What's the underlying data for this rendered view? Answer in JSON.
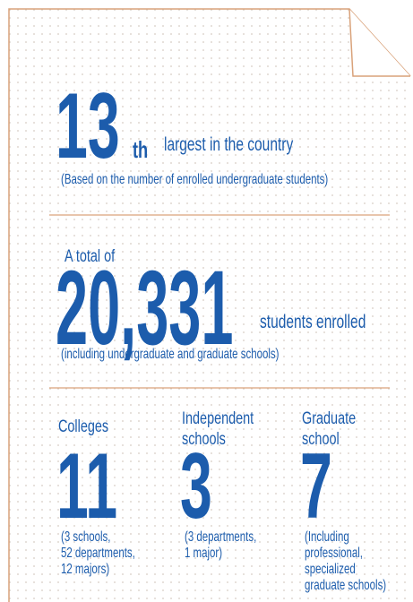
{
  "rank": {
    "number": 13,
    "suffix": "th",
    "text": "largest in the country",
    "note": "(Based on the number of enrolled undergraduate students)"
  },
  "enrollment": {
    "prefix": "A total of",
    "number": "20,331",
    "text": "students enrolled",
    "note": "(including undergraduate and graduate schools)"
  },
  "units": [
    {
      "label": [
        "Colleges"
      ],
      "number": 11,
      "note": [
        "(3 schools,",
        "52 departments,",
        "12 majors)"
      ]
    },
    {
      "label": [
        "Independent",
        "schools"
      ],
      "number": 3,
      "note": [
        "(3 departments,",
        "1 major)"
      ]
    },
    {
      "label": [
        "Graduate",
        "school"
      ],
      "number": 7,
      "note": [
        "(Including",
        "professional,",
        "specialized",
        "graduate schools)"
      ]
    }
  ]
}
